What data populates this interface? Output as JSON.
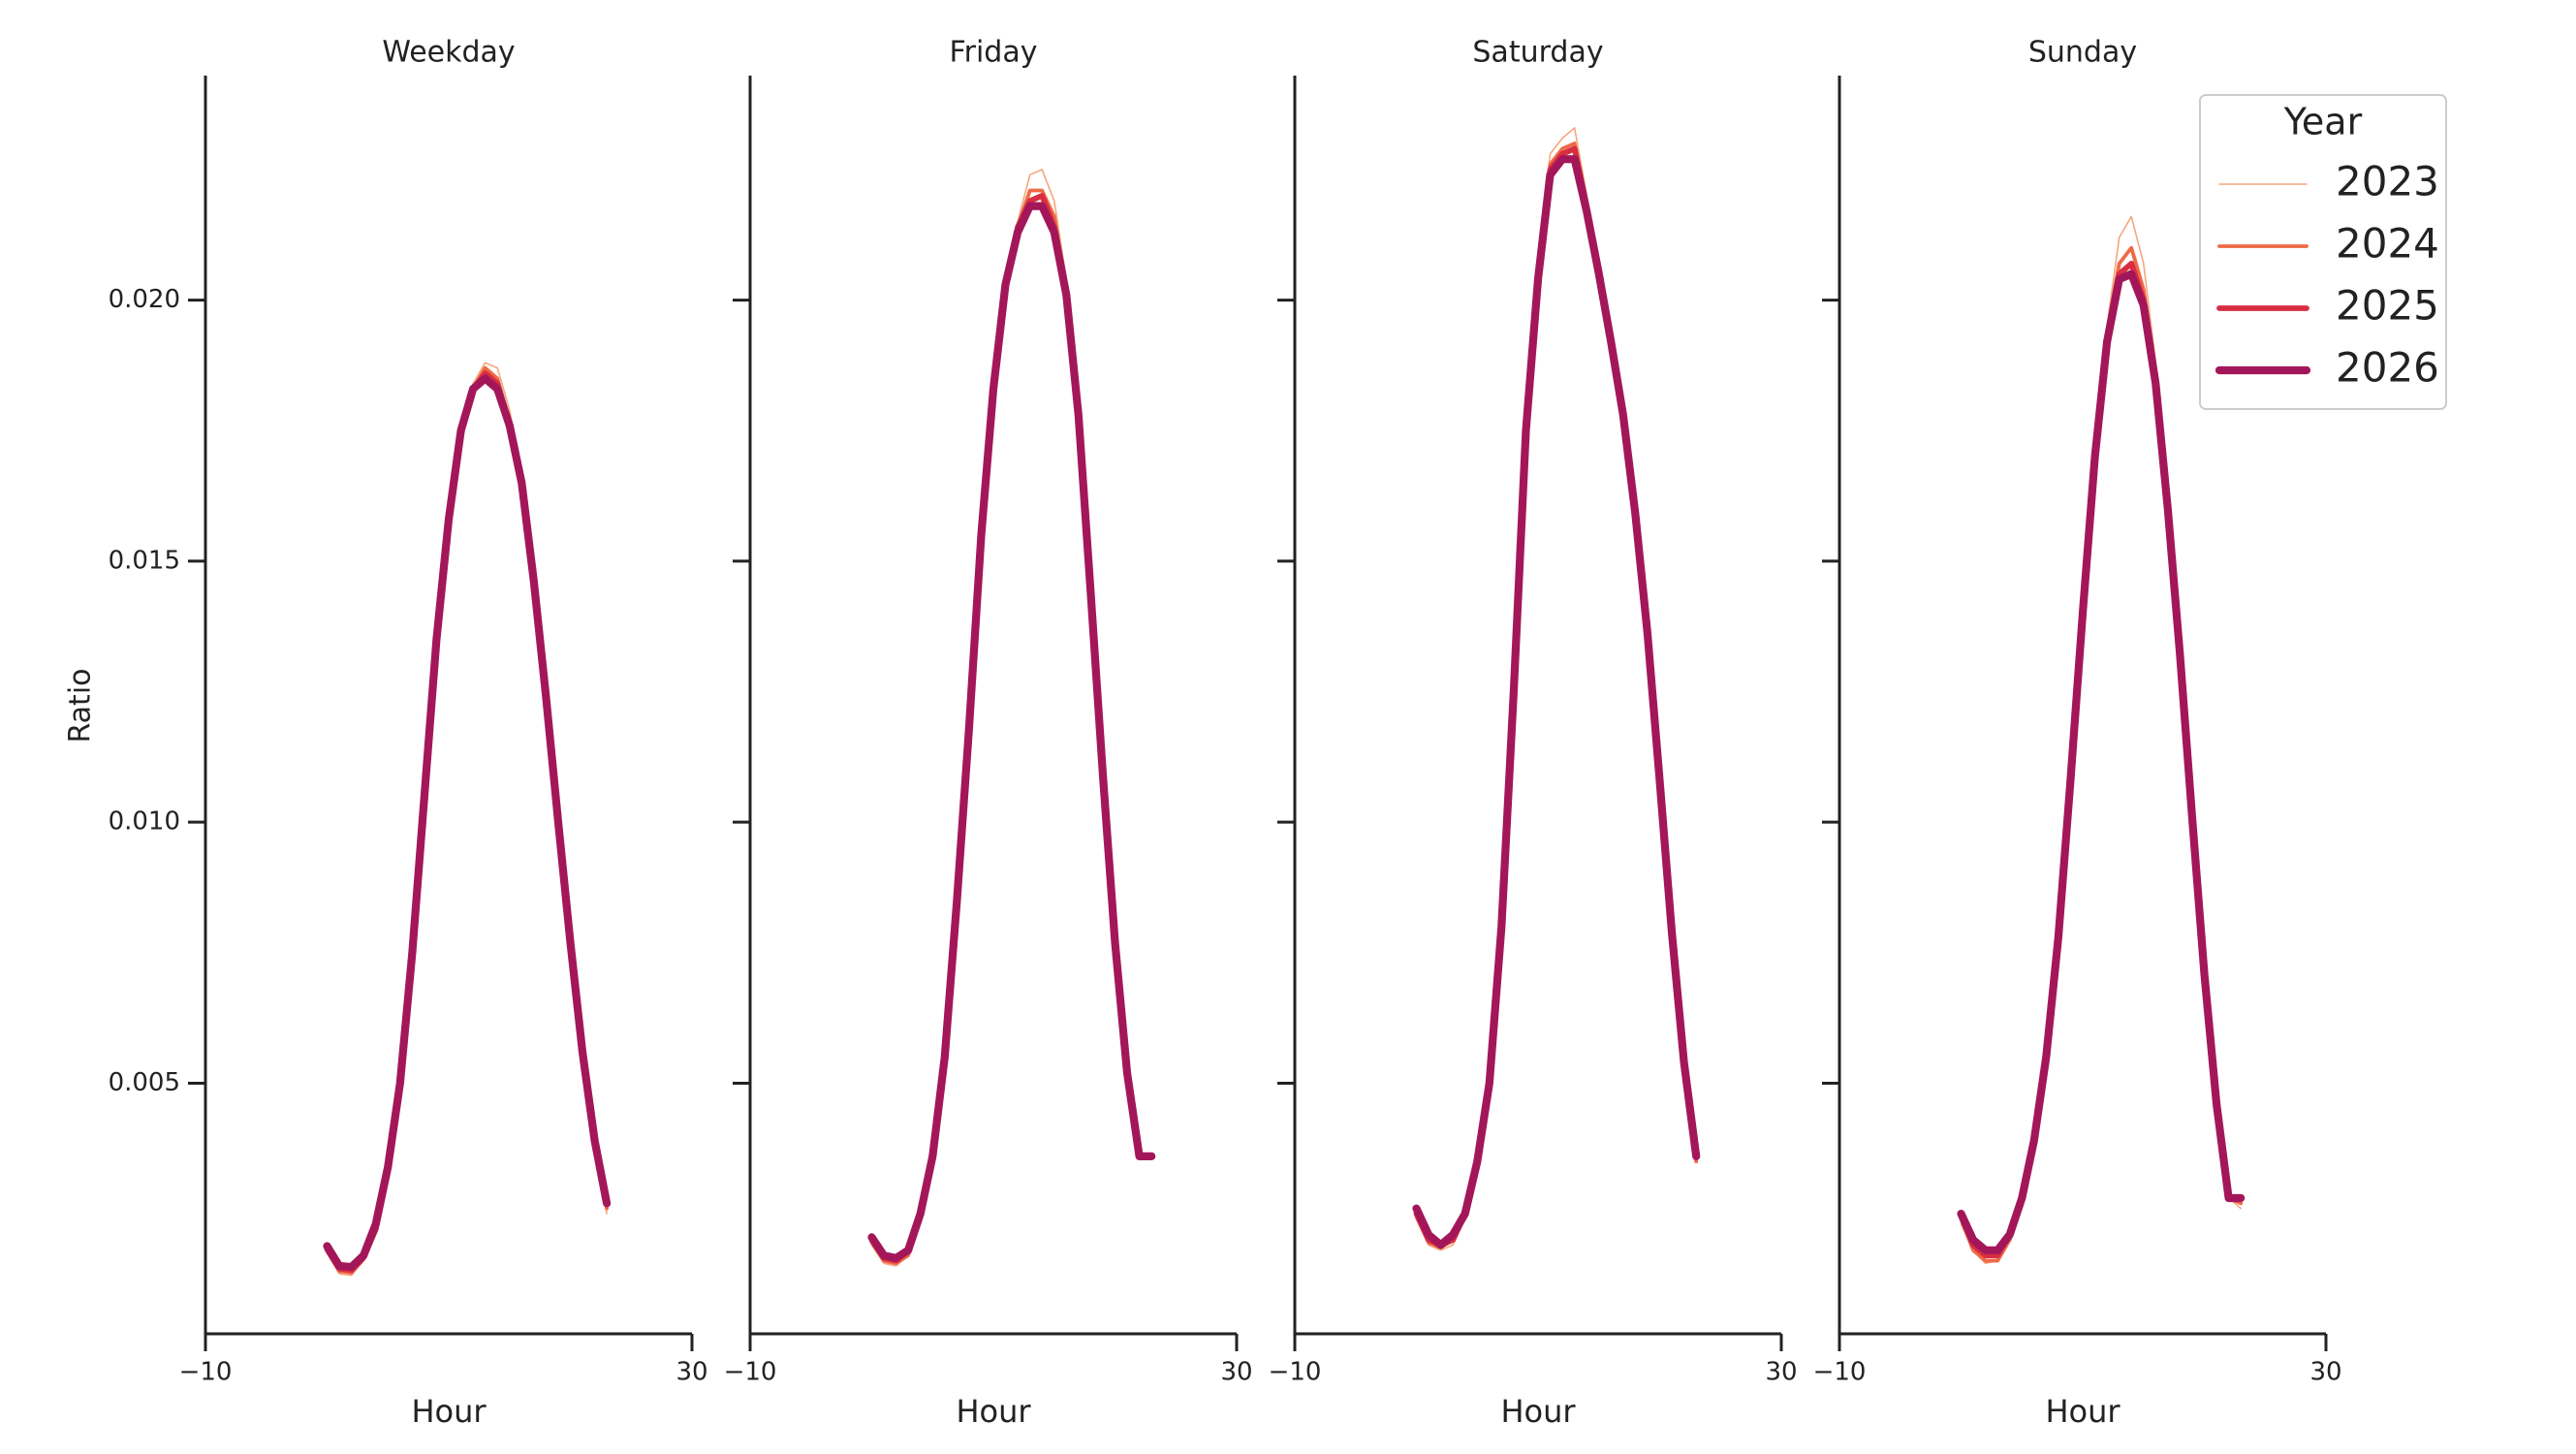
{
  "chart_data": {
    "type": "line",
    "x_label": "Hour",
    "y_label": "Ratio",
    "xlim": [
      -10,
      30
    ],
    "ylim": [
      0.0002,
      0.0243
    ],
    "x_ticks": [
      -10,
      30
    ],
    "x_tick_labels": [
      "−10",
      "30"
    ],
    "y_ticks": [
      0.005,
      0.01,
      0.015,
      0.02
    ],
    "y_tick_labels": [
      "0.005",
      "0.010",
      "0.015",
      "0.020"
    ],
    "grid": false,
    "legend": {
      "title": "Year",
      "placement": "top-right",
      "entries": [
        "2023",
        "2024",
        "2025",
        "2026"
      ]
    },
    "series_styles": [
      {
        "year": "2023",
        "color": "#f5a77e"
      },
      {
        "year": "2024",
        "color": "#ee6a45"
      },
      {
        "year": "2025",
        "color": "#d72e42"
      },
      {
        "year": "2026",
        "color": "#a3175a"
      }
    ],
    "x": [
      0,
      1,
      2,
      3,
      4,
      5,
      6,
      7,
      8,
      9,
      10,
      11,
      12,
      13,
      14,
      15,
      16,
      17,
      18,
      19,
      20,
      21,
      22,
      23
    ],
    "panels": [
      {
        "title": "Weekday",
        "series": [
          {
            "name": "2023",
            "values": [
              0.00175,
              0.00135,
              0.00132,
              0.0016,
              0.0022,
              0.0033,
              0.005,
              0.0075,
              0.0105,
              0.0135,
              0.0158,
              0.0175,
              0.0184,
              0.0188,
              0.0187,
              0.0179,
              0.0166,
              0.0148,
              0.0126,
              0.0102,
              0.0078,
              0.0056,
              0.0038,
              0.0025
            ]
          },
          {
            "name": "2024",
            "values": [
              0.00178,
              0.0014,
              0.00137,
              0.00163,
              0.0022,
              0.0033,
              0.005,
              0.0075,
              0.0105,
              0.0135,
              0.0158,
              0.0175,
              0.0183,
              0.0187,
              0.0185,
              0.0177,
              0.0165,
              0.0147,
              0.0125,
              0.0101,
              0.0078,
              0.0056,
              0.0038,
              0.0026
            ]
          },
          {
            "name": "2025",
            "values": [
              0.00182,
              0.00145,
              0.00142,
              0.00166,
              0.0022,
              0.0033,
              0.005,
              0.0075,
              0.0105,
              0.0135,
              0.0158,
              0.0175,
              0.0183,
              0.0186,
              0.0184,
              0.0176,
              0.0165,
              0.0146,
              0.0124,
              0.0101,
              0.0078,
              0.0056,
              0.0039,
              0.0027
            ]
          },
          {
            "name": "2026",
            "values": [
              0.00188,
              0.0015,
              0.00148,
              0.0017,
              0.0023,
              0.0034,
              0.005,
              0.0075,
              0.0105,
              0.0135,
              0.0158,
              0.0175,
              0.0183,
              0.0185,
              0.0183,
              0.0176,
              0.0165,
              0.0146,
              0.0124,
              0.01,
              0.0077,
              0.0056,
              0.0039,
              0.0027
            ]
          }
        ]
      },
      {
        "title": "Friday",
        "series": [
          {
            "name": "2023",
            "values": [
              0.0019,
              0.00155,
              0.0015,
              0.0017,
              0.0024,
              0.0036,
              0.0055,
              0.0085,
              0.0118,
              0.0155,
              0.0185,
              0.0205,
              0.0215,
              0.0224,
              0.0225,
              0.0219,
              0.0204,
              0.0179,
              0.0145,
              0.011,
              0.0078,
              0.0051,
              0.0036,
              0.0036
            ]
          },
          {
            "name": "2024",
            "values": [
              0.00195,
              0.0016,
              0.00155,
              0.0017,
              0.0024,
              0.0036,
              0.0055,
              0.0085,
              0.0118,
              0.0155,
              0.0184,
              0.0204,
              0.0214,
              0.0221,
              0.0221,
              0.0216,
              0.0202,
              0.0178,
              0.0144,
              0.0109,
              0.0077,
              0.0051,
              0.0036,
              0.0036
            ]
          },
          {
            "name": "2025",
            "values": [
              0.002,
              0.00165,
              0.0016,
              0.0018,
              0.0025,
              0.0036,
              0.0055,
              0.0085,
              0.0118,
              0.0155,
              0.0184,
              0.0203,
              0.0214,
              0.0219,
              0.022,
              0.0214,
              0.0201,
              0.0178,
              0.0144,
              0.0109,
              0.0077,
              0.0052,
              0.0036,
              0.0036
            ]
          },
          {
            "name": "2026",
            "values": [
              0.00205,
              0.0017,
              0.00165,
              0.0018,
              0.0025,
              0.0036,
              0.0055,
              0.0085,
              0.0118,
              0.0155,
              0.0183,
              0.0203,
              0.0213,
              0.0218,
              0.0218,
              0.0213,
              0.0201,
              0.0178,
              0.0144,
              0.0109,
              0.0077,
              0.0052,
              0.0036,
              0.0036
            ]
          }
        ]
      },
      {
        "title": "Saturday",
        "series": [
          {
            "name": "2023",
            "values": [
              0.0024,
              0.0019,
              0.0018,
              0.0019,
              0.0024,
              0.0035,
              0.005,
              0.008,
              0.0125,
              0.0175,
              0.0208,
              0.0228,
              0.0231,
              0.0233,
              0.022,
              0.0207,
              0.0193,
              0.0178,
              0.0158,
              0.0135,
              0.0107,
              0.0078,
              0.0053,
              0.0035
            ]
          },
          {
            "name": "2024",
            "values": [
              0.00245,
              0.00195,
              0.00185,
              0.002,
              0.0025,
              0.0035,
              0.005,
              0.008,
              0.0125,
              0.0175,
              0.0206,
              0.0226,
              0.0229,
              0.023,
              0.0219,
              0.0206,
              0.0192,
              0.0177,
              0.0158,
              0.0135,
              0.0107,
              0.0078,
              0.0053,
              0.0035
            ]
          },
          {
            "name": "2025",
            "values": [
              0.0025,
              0.002,
              0.0019,
              0.002,
              0.0025,
              0.0035,
              0.005,
              0.008,
              0.0125,
              0.0175,
              0.0205,
              0.0225,
              0.0228,
              0.0229,
              0.0218,
              0.0205,
              0.0192,
              0.0178,
              0.0158,
              0.0135,
              0.0107,
              0.0079,
              0.0054,
              0.0036
            ]
          },
          {
            "name": "2026",
            "values": [
              0.0026,
              0.0021,
              0.0019,
              0.0021,
              0.0025,
              0.0035,
              0.005,
              0.008,
              0.0125,
              0.0175,
              0.0204,
              0.0224,
              0.0227,
              0.0227,
              0.0217,
              0.0205,
              0.0192,
              0.0178,
              0.0159,
              0.0136,
              0.0108,
              0.0079,
              0.0054,
              0.0036
            ]
          }
        ]
      },
      {
        "title": "Sunday",
        "series": [
          {
            "name": "2023",
            "values": [
              0.0023,
              0.0018,
              0.00155,
              0.0016,
              0.002,
              0.0027,
              0.0038,
              0.0055,
              0.0078,
              0.0108,
              0.014,
              0.017,
              0.0195,
              0.0212,
              0.0216,
              0.0207,
              0.0188,
              0.0162,
              0.0132,
              0.0101,
              0.0071,
              0.0046,
              0.0028,
              0.0026
            ]
          },
          {
            "name": "2024",
            "values": [
              0.0024,
              0.0018,
              0.0016,
              0.0016,
              0.002,
              0.0027,
              0.0038,
              0.0055,
              0.0078,
              0.0108,
              0.014,
              0.017,
              0.0194,
              0.0207,
              0.021,
              0.0202,
              0.0186,
              0.0161,
              0.0132,
              0.0101,
              0.0071,
              0.0046,
              0.0028,
              0.0027
            ]
          },
          {
            "name": "2025",
            "values": [
              0.00245,
              0.0019,
              0.0017,
              0.0017,
              0.0021,
              0.0028,
              0.0039,
              0.0055,
              0.0078,
              0.0108,
              0.014,
              0.017,
              0.0193,
              0.0205,
              0.0207,
              0.02,
              0.0185,
              0.016,
              0.0132,
              0.0101,
              0.0071,
              0.0046,
              0.0028,
              0.0028
            ]
          },
          {
            "name": "2026",
            "values": [
              0.0025,
              0.002,
              0.0018,
              0.0018,
              0.0021,
              0.0028,
              0.0039,
              0.0055,
              0.0078,
              0.0108,
              0.014,
              0.017,
              0.0192,
              0.0204,
              0.0205,
              0.0199,
              0.0184,
              0.016,
              0.0132,
              0.0101,
              0.0071,
              0.0046,
              0.0028,
              0.0028
            ]
          }
        ]
      }
    ]
  }
}
